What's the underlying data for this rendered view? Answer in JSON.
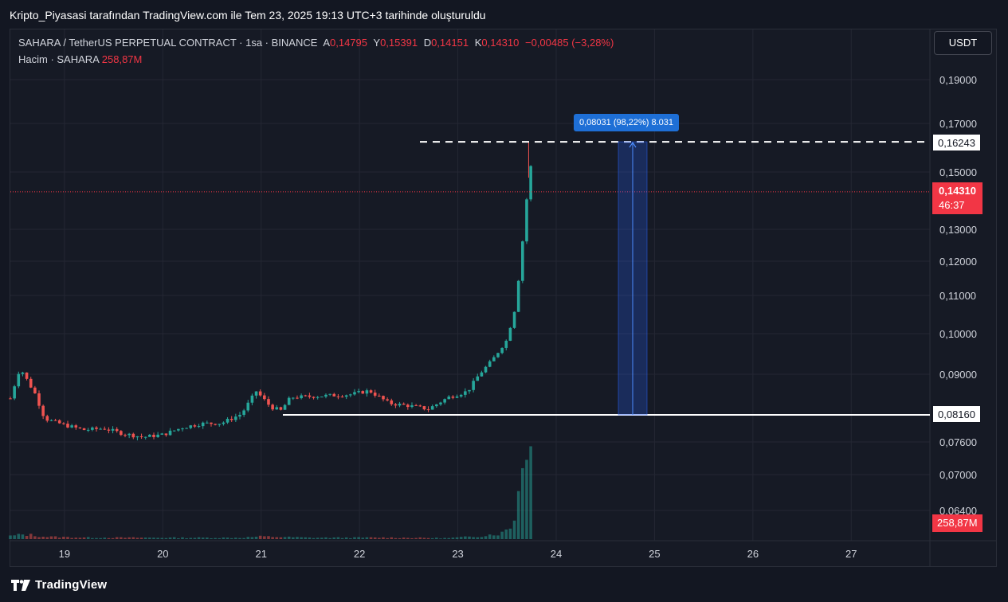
{
  "header": {
    "title": "Kripto_Piyasasi tarafından TradingView.com ile Tem 23, 2025 19:13 UTC+3 tarihinde oluşturuldu"
  },
  "legend": {
    "symbol": "SAHARA / TetherUS PERPETUAL CONTRACT · 1sa · BINANCE",
    "open_label": "A",
    "open": "0,14795",
    "high_label": "Y",
    "high": "0,15391",
    "low_label": "D",
    "low": "0,14151",
    "close_label": "K",
    "close": "0,14310",
    "change": "−0,00485 (−3,28%)",
    "volume_label": "Hacim · SAHARA",
    "volume": "258,87M"
  },
  "currency_button": "USDT",
  "measure_label": "0,08031 (98,22%) 8.031",
  "price_tags": {
    "high_line": "0,16243",
    "current_price": "0,14310",
    "countdown": "46:37",
    "low_line": "0,08160",
    "volume": "258,87M"
  },
  "footer": {
    "brand": "TradingView"
  },
  "colors": {
    "background": "#161a25",
    "up": "#26a69a",
    "down": "#ef5350",
    "measure": "#2962ff",
    "grid": "#242733"
  },
  "chart_data": {
    "type": "candlestick",
    "interval": "1h",
    "y_ticks": [
      "0,19000",
      "0,17000",
      "0,15000",
      "0,13000",
      "0,12000",
      "0,11000",
      "0,10000",
      "0,09000",
      "0,07600",
      "0,07000",
      "0,06400"
    ],
    "x_ticks": [
      "19",
      "20",
      "21",
      "22",
      "23",
      "24",
      "25",
      "26",
      "27"
    ],
    "x_range_days": [
      18.45,
      27.8
    ],
    "horizontal_lines": [
      {
        "price": 0.16243,
        "style": "dashed"
      },
      {
        "price": 0.0816,
        "style": "solid"
      }
    ],
    "measure": {
      "from": 0.0816,
      "to": 0.16243,
      "change": 0.08031,
      "percent": 98.22
    },
    "current_price": 0.1431,
    "last_volume_m": 258.87,
    "anchors": [
      [
        18.45,
        0.085
      ],
      [
        18.55,
        0.0915
      ],
      [
        18.6,
        0.0895
      ],
      [
        18.7,
        0.086
      ],
      [
        18.8,
        0.0808
      ],
      [
        19.0,
        0.0795
      ],
      [
        19.2,
        0.0785
      ],
      [
        19.4,
        0.0788
      ],
      [
        19.6,
        0.0777
      ],
      [
        19.8,
        0.077
      ],
      [
        20.0,
        0.0775
      ],
      [
        20.2,
        0.079
      ],
      [
        20.4,
        0.0798
      ],
      [
        20.6,
        0.0799
      ],
      [
        20.8,
        0.0818
      ],
      [
        20.95,
        0.0865
      ],
      [
        21.1,
        0.0832
      ],
      [
        21.2,
        0.0825
      ],
      [
        21.3,
        0.0852
      ],
      [
        21.6,
        0.0855
      ],
      [
        21.9,
        0.0858
      ],
      [
        22.1,
        0.0866
      ],
      [
        22.3,
        0.084
      ],
      [
        22.5,
        0.0835
      ],
      [
        22.7,
        0.0828
      ],
      [
        22.9,
        0.0852
      ],
      [
        23.1,
        0.0865
      ],
      [
        23.2,
        0.0895
      ],
      [
        23.35,
        0.0935
      ],
      [
        23.5,
        0.0985
      ],
      [
        23.55,
        0.1035
      ],
      [
        23.6,
        0.1085
      ],
      [
        23.63,
        0.1195
      ],
      [
        23.68,
        0.1315
      ],
      [
        23.72,
        0.1495
      ],
      [
        23.75,
        0.1533
      ],
      [
        23.78,
        0.1431
      ]
    ],
    "volume_anchors_m": [
      [
        18.45,
        45
      ],
      [
        18.6,
        70
      ],
      [
        18.8,
        35
      ],
      [
        19.2,
        22
      ],
      [
        20.0,
        20
      ],
      [
        20.8,
        20
      ],
      [
        21.0,
        38
      ],
      [
        21.5,
        20
      ],
      [
        22.3,
        22
      ],
      [
        22.9,
        14
      ],
      [
        23.2,
        40
      ],
      [
        23.45,
        90
      ],
      [
        23.55,
        200
      ],
      [
        23.62,
        700
      ],
      [
        23.68,
        1500
      ],
      [
        23.72,
        1900
      ],
      [
        23.75,
        1000
      ],
      [
        23.78,
        258.87
      ]
    ]
  }
}
